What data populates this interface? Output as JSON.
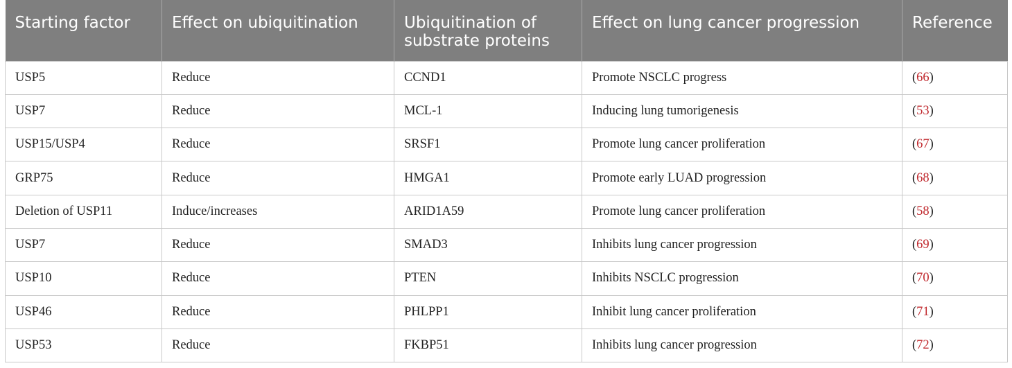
{
  "table": {
    "headers": [
      "Starting factor",
      "Effect on ubiquitination",
      "Ubiquitination of substrate proteins",
      "Effect on lung cancer progression",
      "Reference"
    ],
    "rows": [
      {
        "factor": "USP5",
        "effect": "Reduce",
        "substrate": "CCND1",
        "progression": "Promote NSCLC progress",
        "ref": "66"
      },
      {
        "factor": "USP7",
        "effect": "Reduce",
        "substrate": "MCL-1",
        "progression": "Inducing lung tumorigenesis",
        "ref": "53"
      },
      {
        "factor": "USP15/USP4",
        "effect": "Reduce",
        "substrate": "SRSF1",
        "progression": "Promote lung cancer proliferation",
        "ref": "67"
      },
      {
        "factor": "GRP75",
        "effect": "Reduce",
        "substrate": "HMGA1",
        "progression": "Promote early LUAD progression",
        "ref": "68"
      },
      {
        "factor": "Deletion of USP11",
        "effect": "Induce/increases",
        "substrate": "ARID1A59",
        "progression": "Promote lung cancer proliferation",
        "ref": "58"
      },
      {
        "factor": "USP7",
        "effect": "Reduce",
        "substrate": "SMAD3",
        "progression": "Inhibits lung cancer progression",
        "ref": "69"
      },
      {
        "factor": "USP10",
        "effect": "Reduce",
        "substrate": "PTEN",
        "progression": "Inhibits NSCLC progression",
        "ref": "70"
      },
      {
        "factor": "USP46",
        "effect": "Reduce",
        "substrate": "PHLPP1",
        "progression": "Inhibit lung cancer proliferation",
        "ref": "71"
      },
      {
        "factor": "USP53",
        "effect": "Reduce",
        "substrate": "FKBP51",
        "progression": "Inhibits lung cancer progression",
        "ref": "72"
      }
    ]
  },
  "colors": {
    "header_background": "#7f7f7f",
    "header_text": "#ffffff",
    "reference_number": "#c0282d"
  }
}
